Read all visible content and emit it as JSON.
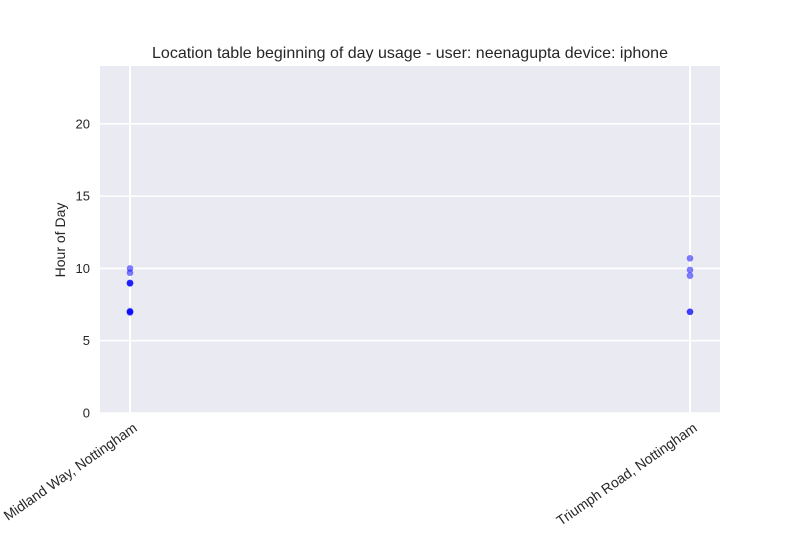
{
  "chart_data": {
    "type": "scatter",
    "title": "Location table beginning of day usage -  user: neenagupta device: iphone",
    "xlabel": "",
    "ylabel": "Hour of Day",
    "categories": [
      "Midland Way, Nottingham",
      "Triumph Road, Nottingham"
    ],
    "yticks": [
      0,
      5,
      10,
      15,
      20
    ],
    "ylim": [
      0,
      24
    ],
    "grid": true,
    "point_color": "#0000ff",
    "plot_background": "#eaeaf2",
    "points": [
      {
        "x": "Midland Way, Nottingham",
        "y": 10.0
      },
      {
        "x": "Midland Way, Nottingham",
        "y": 9.7
      },
      {
        "x": "Midland Way, Nottingham",
        "y": 9.0
      },
      {
        "x": "Midland Way, Nottingham",
        "y": 9.0
      },
      {
        "x": "Midland Way, Nottingham",
        "y": 8.95
      },
      {
        "x": "Midland Way, Nottingham",
        "y": 7.05
      },
      {
        "x": "Midland Way, Nottingham",
        "y": 7.0
      },
      {
        "x": "Midland Way, Nottingham",
        "y": 7.0
      },
      {
        "x": "Midland Way, Nottingham",
        "y": 6.95
      },
      {
        "x": "Triumph Road, Nottingham",
        "y": 10.7
      },
      {
        "x": "Triumph Road, Nottingham",
        "y": 9.9
      },
      {
        "x": "Triumph Road, Nottingham",
        "y": 9.5
      },
      {
        "x": "Triumph Road, Nottingham",
        "y": 7.0
      },
      {
        "x": "Triumph Road, Nottingham",
        "y": 7.0
      }
    ]
  }
}
